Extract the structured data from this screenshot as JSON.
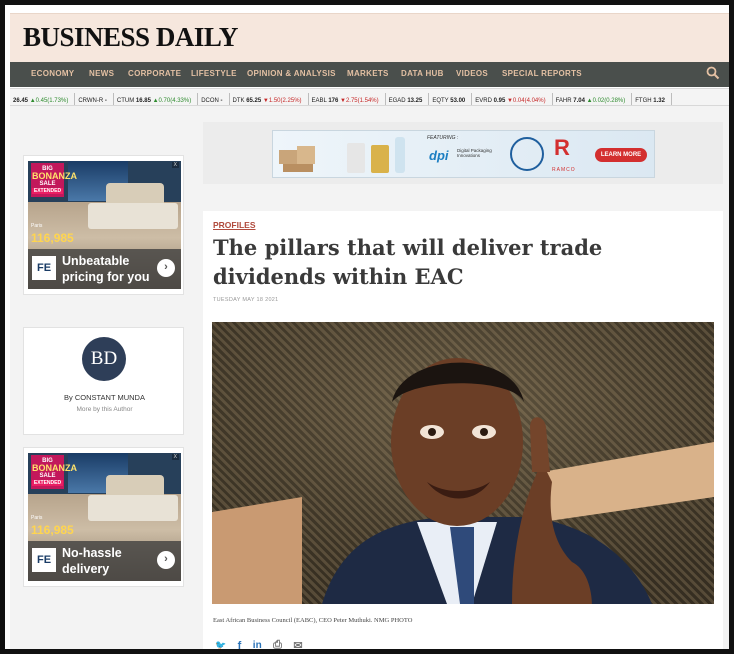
{
  "site": {
    "logo": "BUSINESS DAILY"
  },
  "nav": {
    "items": [
      "ECONOMY",
      "NEWS",
      "CORPORATE",
      "LIFESTYLE",
      "OPINION & ANALYSIS",
      "MARKETS",
      "DATA HUB",
      "VIDEOS",
      "SPECIAL REPORTS"
    ]
  },
  "ticker": [
    {
      "sym": "",
      "price": "26.45",
      "change": "▲0.45(1.73%)",
      "dir": "up"
    },
    {
      "sym": "CRWN-R",
      "price": "-",
      "change": "",
      "dir": ""
    },
    {
      "sym": "CTUM",
      "price": "16.85",
      "change": "▲0.70(4.33%)",
      "dir": "up"
    },
    {
      "sym": "DCON",
      "price": "-",
      "change": "",
      "dir": ""
    },
    {
      "sym": "DTK",
      "price": "65.25",
      "change": "▼1.50(2.25%)",
      "dir": "down"
    },
    {
      "sym": "EABL",
      "price": "176",
      "change": "▼2.75(1.54%)",
      "dir": "down"
    },
    {
      "sym": "EGAD",
      "price": "13.25",
      "change": "",
      "dir": ""
    },
    {
      "sym": "EQTY",
      "price": "53.00",
      "change": "",
      "dir": ""
    },
    {
      "sym": "EVRD",
      "price": "0.95",
      "change": "▼0.04(4.04%)",
      "dir": "down"
    },
    {
      "sym": "FAHR",
      "price": "7.04",
      "change": "▲0.02(0.28%)",
      "dir": "up"
    },
    {
      "sym": "FTGH",
      "price": "1.32",
      "change": "",
      "dir": ""
    }
  ],
  "banner": {
    "featuring": "FEATURING :",
    "dpi": "dpi",
    "dpi_text": "Digital Packaging Innovations",
    "ramco": "R",
    "ramco_text": "RAMCO",
    "cta": "LEARN MORE"
  },
  "ads": [
    {
      "bonanza_top": "BIG",
      "bonanza_main": "BONANZA",
      "bonanza_sale": "SALE",
      "extended": "EXTENDED",
      "paris": "Paris",
      "price": "116,985",
      "fe": "FE",
      "text": "Unbeatable pricing for you",
      "arrow": "›",
      "adx": "X"
    },
    {
      "bonanza_top": "BIG",
      "bonanza_main": "BONANZA",
      "bonanza_sale": "SALE",
      "extended": "EXTENDED",
      "paris": "Paris",
      "price": "116,985",
      "fe": "FE",
      "text": "No-hassle delivery",
      "arrow": "›",
      "adx": "X"
    }
  ],
  "author": {
    "initials": "BD",
    "name": "By CONSTANT MUNDA",
    "more": "More by this Author"
  },
  "article": {
    "section": "PROFILES",
    "headline": "The pillars that will deliver trade dividends within EAC",
    "date": "TUESDAY MAY 18 2021",
    "caption": "East African Business Council (EABC), CEO Peter Muthuki. NMG PHOTO"
  },
  "share": {
    "icons": [
      "twitter-icon",
      "facebook-icon",
      "linkedin-icon",
      "print-icon",
      "email-icon"
    ],
    "glyphs": [
      "🐦",
      "f",
      "in",
      "⎙",
      "✉"
    ]
  },
  "colors": {
    "masthead_bg": "#f6e7dd",
    "nav_bg": "#4a4f4c",
    "nav_text": "#e3c0a3",
    "section_link": "#b04a3c",
    "share_blue": "#2a73b8"
  }
}
